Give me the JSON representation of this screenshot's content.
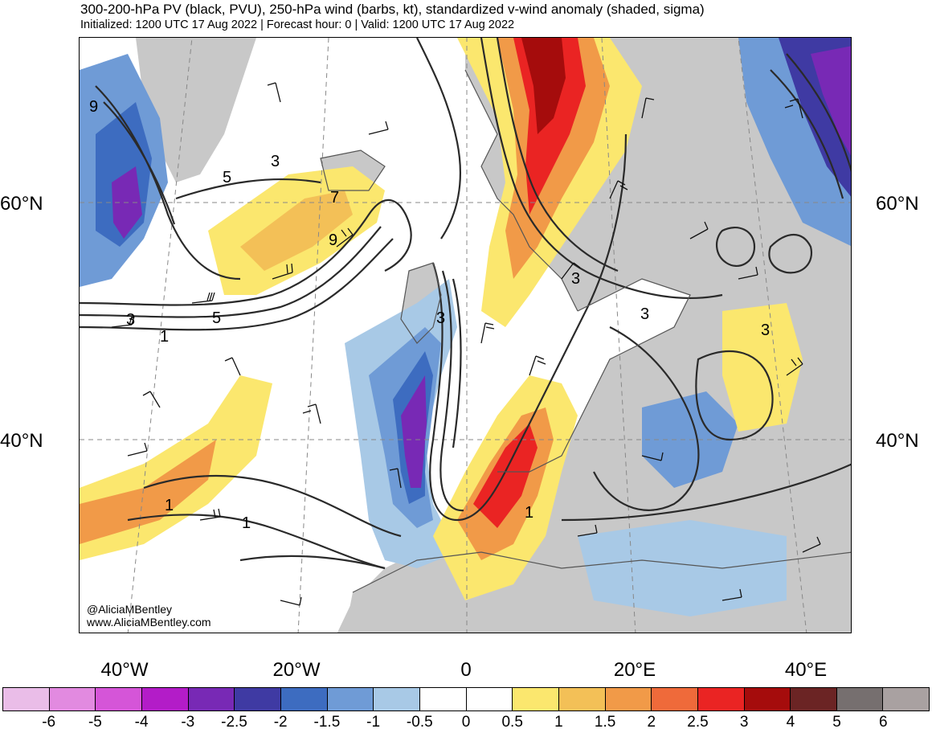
{
  "header": {
    "title": "300-200-hPa PV (black, PVU), 250-hPa wind (barbs, kt), standardized v-wind anomaly (shaded, sigma)",
    "subtitle": "Initialized: 1200 UTC 17 Aug 2022 | Forecast hour: 0 | Valid: 1200 UTC 17 Aug 2022"
  },
  "map": {
    "lat_labels": [
      "60°N",
      "40°N"
    ],
    "lon_labels": [
      "40°W",
      "20°W",
      "0",
      "20°E",
      "40°E"
    ],
    "contour_labels": [
      "9",
      "5",
      "3",
      "7",
      "9",
      "3",
      "5",
      "1",
      "3",
      "3",
      "3",
      "3",
      "1",
      "1",
      "1"
    ],
    "colors": {
      "land": "#c8c8c8",
      "contour": "#2a2a2a",
      "coast": "#555555"
    }
  },
  "credit": {
    "handle": "@AliciaMBentley",
    "website": "www.AliciaMBentley.com"
  },
  "colorbar": {
    "labels": [
      "-6",
      "-5",
      "-4",
      "-3",
      "-2.5",
      "-2",
      "-1.5",
      "-1",
      "-0.5",
      "0",
      "0.5",
      "1",
      "1.5",
      "2",
      "2.5",
      "3",
      "4",
      "5",
      "6"
    ],
    "colors": [
      "#eabde8",
      "#e28ae0",
      "#d555d8",
      "#b31cc8",
      "#7829b5",
      "#3f3aa3",
      "#3d6cc0",
      "#6f9bd6",
      "#a8c9e6",
      "#ffffff",
      "#ffffff",
      "#fbe76e",
      "#f3c057",
      "#f19a48",
      "#ef6a3a",
      "#ea2423",
      "#a50c0c",
      "#6b2424",
      "#766f6f",
      "#a9a1a1"
    ]
  }
}
